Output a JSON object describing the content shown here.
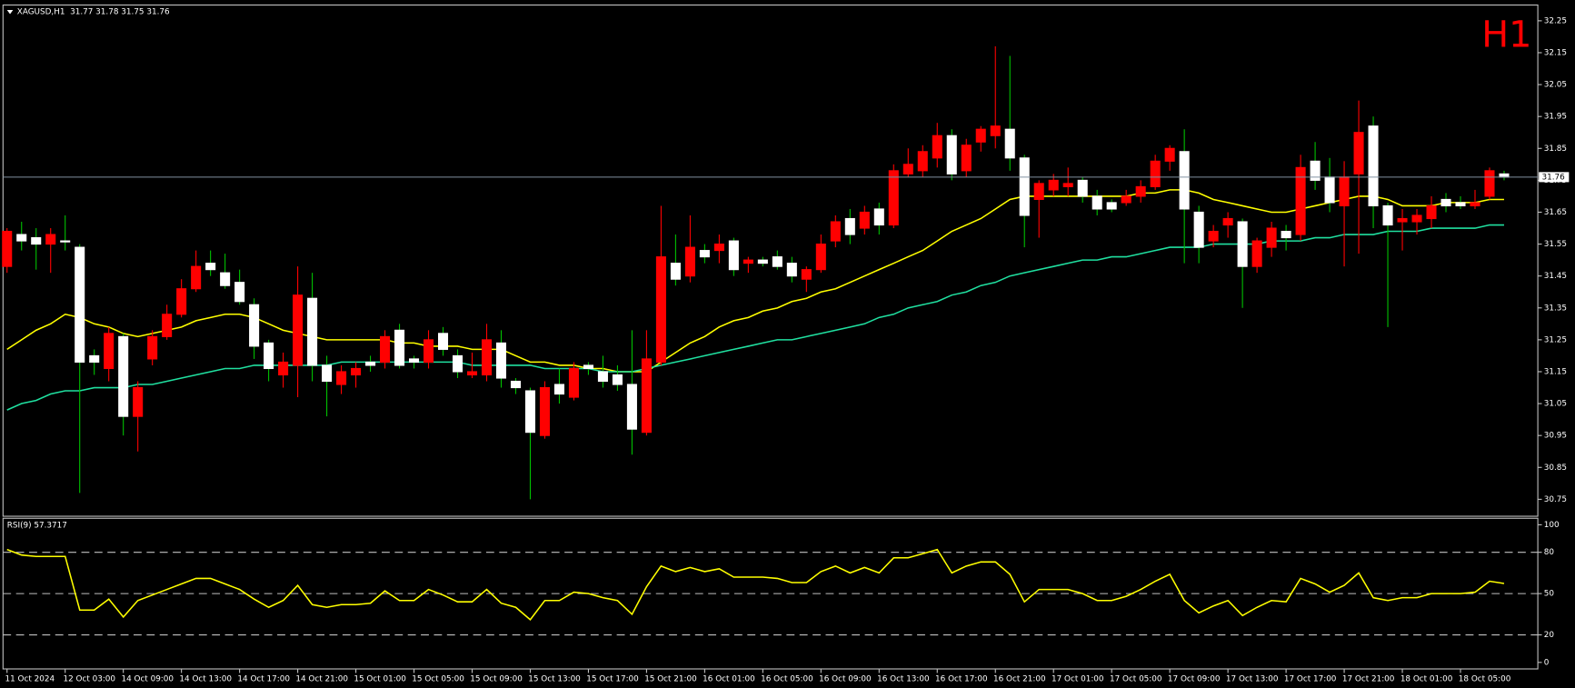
{
  "chart_data": [
    {
      "type": "candlestick",
      "title": "XAGUSD,H1  31.77 31.78 31.75 31.76",
      "badge": "H1",
      "categories": [
        "11 Oct 2024",
        null,
        null,
        null,
        "12 Oct 03:00",
        null,
        null,
        null,
        "14 Oct 09:00",
        null,
        null,
        null,
        "14 Oct 13:00",
        null,
        null,
        null,
        "14 Oct 17:00",
        null,
        null,
        null,
        "14 Oct 21:00",
        null,
        null,
        null,
        "15 Oct 01:00",
        null,
        null,
        null,
        "15 Oct 05:00",
        null,
        null,
        null,
        "15 Oct 09:00",
        null,
        null,
        null,
        "15 Oct 13:00",
        null,
        null,
        null,
        "15 Oct 17:00",
        null,
        null,
        null,
        "15 Oct 21:00",
        null,
        null,
        null,
        "16 Oct 01:00",
        null,
        null,
        null,
        "16 Oct 05:00",
        null,
        null,
        null,
        "16 Oct 09:00",
        null,
        null,
        null,
        "16 Oct 13:00",
        null,
        null,
        null,
        "16 Oct 17:00",
        null,
        null,
        null,
        "16 Oct 21:00",
        null,
        null,
        null,
        "17 Oct 01:00",
        null,
        null,
        null,
        "17 Oct 05:00",
        null,
        null,
        null,
        "17 Oct 09:00",
        null,
        null,
        null,
        "17 Oct 13:00",
        null,
        null,
        null,
        "17 Oct 17:00",
        null,
        null,
        null,
        "17 Oct 21:00",
        null,
        null,
        null,
        "18 Oct 01:00",
        null,
        null,
        null,
        "18 Oct 05:00",
        null,
        null,
        null
      ],
      "open": [
        31.48,
        31.58,
        31.57,
        31.55,
        31.56,
        31.54,
        31.2,
        31.16,
        31.26,
        31.01,
        31.19,
        31.26,
        31.33,
        31.41,
        31.49,
        31.46,
        31.43,
        31.36,
        31.24,
        31.14,
        31.17,
        31.38,
        31.17,
        31.11,
        31.14,
        31.18,
        31.18,
        31.28,
        31.19,
        31.18,
        31.27,
        31.2,
        31.14,
        31.14,
        31.24,
        31.12,
        31.09,
        30.95,
        31.11,
        31.07,
        31.17,
        31.15,
        31.14,
        31.11,
        30.96,
        31.18,
        31.49,
        31.45,
        31.53,
        31.53,
        31.56,
        31.49,
        31.5,
        31.51,
        31.49,
        31.44,
        31.47,
        31.56,
        31.63,
        31.6,
        31.66,
        31.61,
        31.77,
        31.78,
        31.82,
        31.89,
        31.78,
        31.87,
        31.89,
        31.91,
        31.82,
        31.69,
        31.72,
        31.73,
        31.75,
        31.7,
        31.68,
        31.68,
        31.7,
        31.73,
        31.81,
        31.84,
        31.65,
        31.56,
        31.61,
        31.62,
        31.48,
        31.54,
        31.59,
        31.58,
        31.81,
        31.76,
        31.67,
        31.77,
        31.92,
        31.67,
        31.62,
        31.62,
        31.63,
        31.69,
        31.68,
        31.67,
        31.7,
        31.77
      ],
      "high": [
        31.6,
        31.62,
        31.6,
        31.6,
        31.64,
        31.55,
        31.22,
        31.29,
        31.27,
        31.12,
        31.28,
        31.36,
        31.44,
        31.53,
        31.53,
        31.52,
        31.47,
        31.38,
        31.25,
        31.21,
        31.48,
        31.46,
        31.2,
        31.17,
        31.18,
        31.2,
        31.28,
        31.3,
        31.2,
        31.28,
        31.29,
        31.22,
        31.21,
        31.3,
        31.28,
        31.13,
        31.1,
        31.12,
        31.16,
        31.18,
        31.18,
        31.2,
        31.17,
        31.28,
        31.28,
        31.67,
        31.58,
        31.64,
        31.55,
        31.58,
        31.57,
        31.51,
        31.51,
        31.53,
        31.51,
        31.48,
        31.58,
        31.64,
        31.66,
        31.67,
        31.68,
        31.8,
        31.85,
        31.86,
        31.93,
        31.91,
        31.88,
        31.92,
        32.17,
        32.14,
        31.83,
        31.75,
        31.77,
        31.79,
        31.76,
        31.72,
        31.69,
        31.72,
        31.75,
        31.83,
        31.86,
        31.91,
        31.67,
        31.61,
        31.65,
        31.63,
        31.57,
        31.62,
        31.61,
        31.83,
        31.87,
        31.82,
        31.81,
        32.0,
        31.95,
        31.68,
        31.66,
        31.66,
        31.7,
        31.71,
        31.7,
        31.72,
        31.79,
        31.78
      ],
      "low": [
        31.46,
        31.53,
        31.47,
        31.46,
        31.53,
        30.77,
        31.14,
        31.12,
        30.95,
        30.9,
        31.17,
        31.25,
        31.32,
        31.4,
        31.45,
        31.41,
        31.36,
        31.19,
        31.12,
        31.1,
        31.07,
        31.12,
        31.01,
        31.08,
        31.1,
        31.15,
        31.16,
        31.16,
        31.16,
        31.16,
        31.2,
        31.13,
        31.13,
        31.12,
        31.1,
        31.08,
        30.75,
        30.94,
        31.05,
        31.06,
        31.14,
        31.1,
        31.09,
        30.89,
        30.95,
        31.17,
        31.42,
        31.43,
        31.49,
        31.49,
        31.45,
        31.46,
        31.48,
        31.47,
        31.43,
        31.4,
        31.46,
        31.54,
        31.55,
        31.58,
        31.58,
        31.6,
        31.76,
        31.76,
        31.79,
        31.75,
        31.76,
        31.84,
        31.85,
        31.78,
        31.54,
        31.57,
        31.7,
        31.7,
        31.68,
        31.64,
        31.65,
        31.67,
        31.68,
        31.72,
        31.78,
        31.49,
        31.49,
        31.54,
        31.57,
        31.35,
        31.46,
        31.51,
        31.53,
        31.56,
        31.72,
        31.65,
        31.48,
        31.52,
        31.6,
        31.29,
        31.53,
        31.58,
        31.6,
        31.65,
        31.66,
        31.66,
        31.69,
        31.75
      ],
      "close": [
        31.59,
        31.56,
        31.55,
        31.58,
        31.56,
        31.18,
        31.18,
        31.27,
        31.01,
        31.1,
        31.26,
        31.33,
        31.41,
        31.48,
        31.47,
        31.42,
        31.37,
        31.23,
        31.16,
        31.18,
        31.39,
        31.17,
        31.12,
        31.15,
        31.16,
        31.17,
        31.26,
        31.17,
        31.18,
        31.25,
        31.22,
        31.15,
        31.15,
        31.25,
        31.13,
        31.1,
        30.96,
        31.1,
        31.08,
        31.16,
        31.16,
        31.12,
        31.11,
        30.97,
        31.19,
        31.51,
        31.44,
        31.54,
        31.51,
        31.55,
        31.47,
        31.5,
        31.49,
        31.48,
        31.45,
        31.47,
        31.55,
        31.62,
        31.58,
        31.65,
        31.61,
        31.78,
        31.8,
        31.84,
        31.89,
        31.77,
        31.86,
        31.91,
        31.92,
        31.82,
        31.64,
        31.74,
        31.75,
        31.74,
        31.7,
        31.66,
        31.66,
        31.7,
        31.73,
        31.81,
        31.85,
        31.66,
        31.54,
        31.59,
        31.63,
        31.48,
        31.56,
        31.6,
        31.57,
        31.79,
        31.75,
        31.68,
        31.76,
        31.9,
        31.67,
        31.61,
        31.63,
        31.64,
        31.67,
        31.67,
        31.67,
        31.68,
        31.78,
        31.76
      ],
      "up_color": "#ff0000",
      "down_color": "#ffffff",
      "down_wick_color": "#00c000",
      "series": [
        {
          "color": "#ffff00",
          "values": [
            31.22,
            31.25,
            31.28,
            31.3,
            31.33,
            31.32,
            31.3,
            31.29,
            31.27,
            31.26,
            31.27,
            31.28,
            31.29,
            31.31,
            31.32,
            31.33,
            31.33,
            31.32,
            31.3,
            31.28,
            31.27,
            31.26,
            31.25,
            31.25,
            31.25,
            31.25,
            31.25,
            31.24,
            31.24,
            31.23,
            31.23,
            31.23,
            31.22,
            31.22,
            31.22,
            31.2,
            31.18,
            31.18,
            31.17,
            31.17,
            31.16,
            31.16,
            31.15,
            31.15,
            31.15,
            31.18,
            31.21,
            31.24,
            31.26,
            31.29,
            31.31,
            31.32,
            31.34,
            31.35,
            31.37,
            31.38,
            31.4,
            31.41,
            31.43,
            31.45,
            31.47,
            31.49,
            31.51,
            31.53,
            31.56,
            31.59,
            31.61,
            31.63,
            31.66,
            31.69,
            31.7,
            31.7,
            31.7,
            31.7,
            31.7,
            31.7,
            31.7,
            31.7,
            31.71,
            31.71,
            31.72,
            31.72,
            31.71,
            31.69,
            31.68,
            31.67,
            31.66,
            31.65,
            31.65,
            31.66,
            31.67,
            31.68,
            31.69,
            31.7,
            31.7,
            31.69,
            31.67,
            31.67,
            31.67,
            31.68,
            31.68,
            31.68,
            31.69,
            31.69
          ]
        },
        {
          "color": "#20e0a0",
          "values": [
            31.03,
            31.05,
            31.06,
            31.08,
            31.09,
            31.09,
            31.1,
            31.1,
            31.1,
            31.11,
            31.11,
            31.12,
            31.13,
            31.14,
            31.15,
            31.16,
            31.16,
            31.17,
            31.17,
            31.17,
            31.17,
            31.17,
            31.17,
            31.18,
            31.18,
            31.18,
            31.18,
            31.18,
            31.18,
            31.18,
            31.18,
            31.18,
            31.17,
            31.17,
            31.17,
            31.17,
            31.17,
            31.16,
            31.16,
            31.16,
            31.16,
            31.15,
            31.15,
            31.15,
            31.16,
            31.17,
            31.18,
            31.19,
            31.2,
            31.21,
            31.22,
            31.23,
            31.24,
            31.25,
            31.25,
            31.26,
            31.27,
            31.28,
            31.29,
            31.3,
            31.32,
            31.33,
            31.35,
            31.36,
            31.37,
            31.39,
            31.4,
            31.42,
            31.43,
            31.45,
            31.46,
            31.47,
            31.48,
            31.49,
            31.5,
            31.5,
            31.51,
            31.51,
            31.52,
            31.53,
            31.54,
            31.54,
            31.54,
            31.55,
            31.55,
            31.55,
            31.55,
            31.56,
            31.56,
            31.56,
            31.57,
            31.57,
            31.58,
            31.58,
            31.58,
            31.59,
            31.59,
            31.59,
            31.6,
            31.6,
            31.6,
            31.6,
            31.61,
            31.61
          ]
        }
      ],
      "bid": 31.76,
      "bid_color": "#8090a0",
      "ylim": [
        30.7,
        32.29
      ],
      "yticks": [
        30.75,
        30.85,
        30.95,
        31.05,
        31.15,
        31.25,
        31.35,
        31.45,
        31.55,
        31.65,
        31.75,
        31.85,
        31.95,
        32.05,
        32.15,
        32.25
      ]
    },
    {
      "type": "line",
      "title": "RSI(9) 57.3717",
      "color": "#ffff00",
      "values": [
        82,
        78,
        77,
        77,
        77,
        38,
        38,
        46,
        33,
        45,
        49,
        53,
        57,
        61,
        61,
        57,
        53,
        46,
        40,
        45,
        56,
        42,
        40,
        42,
        42,
        43,
        52,
        45,
        45,
        53,
        49,
        44,
        44,
        53,
        43,
        40,
        31,
        45,
        45,
        51,
        50,
        47,
        45,
        35,
        55,
        70,
        66,
        69,
        66,
        68,
        62,
        62,
        62,
        61,
        58,
        58,
        66,
        70,
        65,
        69,
        65,
        76,
        76,
        79,
        82,
        65,
        70,
        73,
        73,
        64,
        44,
        53,
        53,
        53,
        50,
        45,
        45,
        48,
        53,
        59,
        64,
        45,
        36,
        41,
        45,
        34,
        40,
        45,
        44,
        61,
        57,
        51,
        56,
        65,
        47,
        45,
        47,
        47,
        50,
        50,
        50,
        51,
        59,
        57.3717
      ],
      "levels": [
        20,
        50,
        80
      ],
      "ylim": [
        -4,
        104
      ],
      "yticks": [
        0,
        20,
        50,
        80,
        100
      ]
    }
  ]
}
